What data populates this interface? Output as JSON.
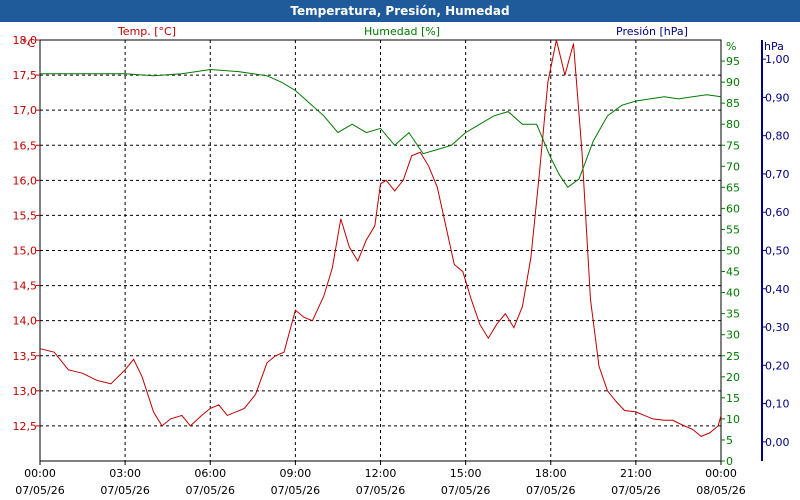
{
  "window": {
    "title": "Temperatura, Presión, Humedad"
  },
  "chart_data": {
    "type": "line",
    "title": "Temperatura, Presión, Humedad",
    "x_ticks": [
      {
        "time": "00:00",
        "date": "07/05/26"
      },
      {
        "time": "03:00",
        "date": "07/05/26"
      },
      {
        "time": "06:00",
        "date": "07/05/26"
      },
      {
        "time": "09:00",
        "date": "07/05/26"
      },
      {
        "time": "12:00",
        "date": "07/05/26"
      },
      {
        "time": "15:00",
        "date": "07/05/26"
      },
      {
        "time": "18:00",
        "date": "07/05/26"
      },
      {
        "time": "21:00",
        "date": "07/05/26"
      },
      {
        "time": "00:00",
        "date": "08/05/26"
      }
    ],
    "xlim": [
      0,
      24
    ],
    "axes": {
      "temperature": {
        "label": "Temp. [°C]",
        "unit": "°C",
        "ylim": [
          12.0,
          18.0
        ],
        "ticks": [
          "12,5",
          "13,0",
          "13,5",
          "14,0",
          "14,5",
          "15,0",
          "15,5",
          "16,0",
          "16,5",
          "17,0",
          "17,5",
          "18,0"
        ],
        "color": "#c00000"
      },
      "humidity": {
        "label": "Humedad [%]",
        "unit": "%",
        "ylim": [
          0,
          100
        ],
        "ticks": [
          "0",
          "5",
          "10",
          "15",
          "20",
          "25",
          "30",
          "35",
          "40",
          "45",
          "50",
          "55",
          "60",
          "65",
          "70",
          "75",
          "80",
          "85",
          "90",
          "95"
        ],
        "color": "#007a00"
      },
      "pressure": {
        "label": "Presión [hPa]",
        "unit": "hPa",
        "ylim": [
          -0.05,
          1.05
        ],
        "ticks": [
          "0,00",
          "0,10",
          "0,20",
          "0,30",
          "0,40",
          "0,50",
          "0,60",
          "0,70",
          "0,80",
          "0,90",
          "1,00"
        ],
        "color": "#000080"
      }
    },
    "grid": true,
    "series": [
      {
        "name": "Temp. [°C]",
        "axis": "temperature",
        "color": "#c00000",
        "x": [
          0,
          0.5,
          1,
          1.5,
          2,
          2.5,
          3,
          3.3,
          3.6,
          4,
          4.3,
          4.6,
          5,
          5.3,
          5.7,
          6,
          6.3,
          6.6,
          6.9,
          7.2,
          7.6,
          8,
          8.3,
          8.6,
          9,
          9.3,
          9.6,
          10,
          10.3,
          10.6,
          10.9,
          11.2,
          11.5,
          11.8,
          12,
          12.2,
          12.5,
          12.8,
          13.1,
          13.4,
          13.7,
          14,
          14.3,
          14.6,
          14.9,
          15.2,
          15.5,
          15.8,
          16.1,
          16.4,
          16.7,
          17,
          17.3,
          17.6,
          17.9,
          18.2,
          18.5,
          18.8,
          19.1,
          19.4,
          19.7,
          20,
          20.3,
          20.6,
          21,
          21.3,
          21.6,
          22,
          22.3,
          22.6,
          23,
          23.3,
          23.6,
          23.9,
          24
        ],
        "values": [
          13.6,
          13.55,
          13.3,
          13.25,
          13.15,
          13.1,
          13.3,
          13.45,
          13.2,
          12.7,
          12.5,
          12.6,
          12.65,
          12.5,
          12.65,
          12.75,
          12.8,
          12.65,
          12.7,
          12.75,
          12.95,
          13.4,
          13.5,
          13.55,
          14.15,
          14.05,
          14.0,
          14.35,
          14.75,
          15.45,
          15.05,
          14.85,
          15.15,
          15.35,
          15.95,
          16.0,
          15.85,
          16.0,
          16.35,
          16.4,
          16.2,
          15.9,
          15.35,
          14.8,
          14.7,
          14.3,
          13.95,
          13.75,
          13.95,
          14.1,
          13.9,
          14.2,
          14.9,
          16.1,
          17.4,
          18.0,
          17.5,
          17.95,
          16.4,
          14.3,
          13.35,
          13.0,
          12.85,
          12.72,
          12.7,
          12.65,
          12.6,
          12.58,
          12.58,
          12.52,
          12.45,
          12.35,
          12.4,
          12.5,
          12.65
        ]
      },
      {
        "name": "Humedad [%]",
        "axis": "humidity",
        "color": "#007a00",
        "x": [
          0,
          1,
          2,
          3,
          4,
          5,
          6,
          7,
          8,
          8.5,
          9,
          9.5,
          10,
          10.5,
          11,
          11.5,
          12,
          12.5,
          13,
          13.5,
          14,
          14.5,
          15,
          15.5,
          16,
          16.5,
          17,
          17.5,
          18,
          18.3,
          18.6,
          19,
          19.5,
          20,
          20.5,
          21,
          21.5,
          22,
          22.5,
          23,
          23.5,
          24
        ],
        "values": [
          92,
          92,
          92,
          92,
          91.5,
          92,
          93,
          92.5,
          91.5,
          90,
          88,
          85,
          82,
          78,
          80,
          78,
          79,
          75,
          78,
          73,
          74,
          75,
          78,
          80,
          82,
          83,
          80,
          80,
          72,
          68,
          65,
          67,
          76,
          82,
          84.5,
          85.5,
          86,
          86.5,
          86,
          86.5,
          87,
          86.5
        ]
      },
      {
        "name": "Presión [hPa]",
        "axis": "pressure",
        "color": "#000080",
        "x": [],
        "values": []
      }
    ]
  }
}
